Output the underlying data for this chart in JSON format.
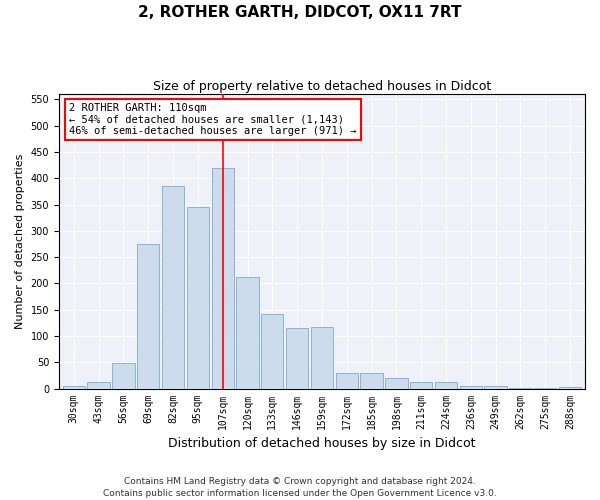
{
  "title": "2, ROTHER GARTH, DIDCOT, OX11 7RT",
  "subtitle": "Size of property relative to detached houses in Didcot",
  "xlabel": "Distribution of detached houses by size in Didcot",
  "ylabel": "Number of detached properties",
  "bar_labels": [
    "30sqm",
    "43sqm",
    "56sqm",
    "69sqm",
    "82sqm",
    "95sqm",
    "107sqm",
    "120sqm",
    "133sqm",
    "146sqm",
    "159sqm",
    "172sqm",
    "185sqm",
    "198sqm",
    "211sqm",
    "224sqm",
    "236sqm",
    "249sqm",
    "262sqm",
    "275sqm",
    "288sqm"
  ],
  "bar_values": [
    5,
    12,
    48,
    275,
    385,
    345,
    420,
    212,
    142,
    115,
    117,
    30,
    30,
    20,
    12,
    12,
    4,
    4,
    1,
    1,
    3
  ],
  "bar_color": "#ccdcec",
  "bar_edge_color": "#8ab4d4",
  "vline_x_index": 6,
  "vline_color": "red",
  "annotation_line1": "2 ROTHER GARTH: 110sqm",
  "annotation_line2": "← 54% of detached houses are smaller (1,143)",
  "annotation_line3": "46% of semi-detached houses are larger (971) →",
  "ylim": [
    0,
    560
  ],
  "yticks": [
    0,
    50,
    100,
    150,
    200,
    250,
    300,
    350,
    400,
    450,
    500,
    550
  ],
  "bg_color": "#eef2f8",
  "footer": "Contains HM Land Registry data © Crown copyright and database right 2024.\nContains public sector information licensed under the Open Government Licence v3.0.",
  "title_fontsize": 11,
  "subtitle_fontsize": 9,
  "xlabel_fontsize": 9,
  "ylabel_fontsize": 8,
  "tick_fontsize": 7,
  "footer_fontsize": 6.5,
  "annotation_fontsize": 7.5
}
